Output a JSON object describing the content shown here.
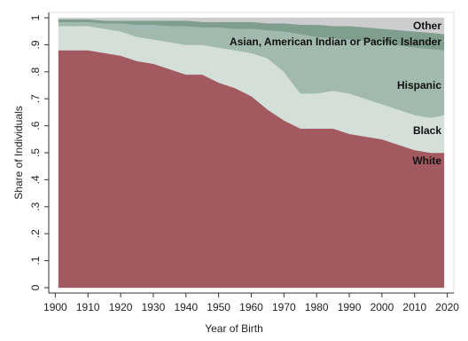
{
  "chart_data": {
    "type": "stacked-area",
    "x_label": "Year of Birth",
    "y_label": "Share of Individuals",
    "x": [
      1901,
      1905,
      1910,
      1915,
      1920,
      1925,
      1930,
      1935,
      1940,
      1945,
      1950,
      1955,
      1960,
      1965,
      1970,
      1975,
      1980,
      1985,
      1990,
      1995,
      2000,
      2005,
      2010,
      2015,
      2019
    ],
    "series": [
      {
        "name": "White",
        "color": "#a25a60",
        "values": [
          0.88,
          0.88,
          0.88,
          0.87,
          0.86,
          0.84,
          0.83,
          0.81,
          0.79,
          0.79,
          0.76,
          0.74,
          0.71,
          0.66,
          0.62,
          0.59,
          0.59,
          0.59,
          0.57,
          0.56,
          0.55,
          0.53,
          0.51,
          0.5,
          0.5
        ]
      },
      {
        "name": "Black",
        "color": "#d4dfd9",
        "values": [
          0.09,
          0.09,
          0.09,
          0.09,
          0.09,
          0.09,
          0.09,
          0.1,
          0.11,
          0.11,
          0.13,
          0.14,
          0.16,
          0.19,
          0.18,
          0.13,
          0.13,
          0.14,
          0.15,
          0.14,
          0.13,
          0.13,
          0.13,
          0.13,
          0.14
        ]
      },
      {
        "name": "Hispanic",
        "color": "#a1b9ae",
        "values": [
          0.015,
          0.015,
          0.015,
          0.02,
          0.03,
          0.045,
          0.055,
          0.06,
          0.07,
          0.065,
          0.075,
          0.08,
          0.09,
          0.105,
          0.15,
          0.22,
          0.21,
          0.195,
          0.2,
          0.215,
          0.23,
          0.24,
          0.25,
          0.255,
          0.24
        ]
      },
      {
        "name": "Asian, American Indian or Pacific Islander",
        "color": "#7f9e8e",
        "values": [
          0.01,
          0.01,
          0.01,
          0.01,
          0.01,
          0.015,
          0.015,
          0.02,
          0.02,
          0.02,
          0.02,
          0.025,
          0.025,
          0.025,
          0.03,
          0.035,
          0.045,
          0.045,
          0.05,
          0.05,
          0.05,
          0.055,
          0.06,
          0.06,
          0.06
        ]
      },
      {
        "name": "Other",
        "color": "#cdcdcd",
        "values": [
          0.005,
          0.005,
          0.005,
          0.01,
          0.01,
          0.01,
          0.01,
          0.01,
          0.01,
          0.015,
          0.015,
          0.015,
          0.015,
          0.02,
          0.02,
          0.025,
          0.025,
          0.03,
          0.03,
          0.035,
          0.04,
          0.045,
          0.05,
          0.055,
          0.06
        ]
      }
    ],
    "xlim": [
      1898,
      2022
    ],
    "ylim": [
      -0.02,
      1.02
    ],
    "xticks": [
      1900,
      1910,
      1920,
      1930,
      1940,
      1950,
      1960,
      1970,
      1980,
      1990,
      2000,
      2010,
      2020
    ],
    "yticks": [
      0,
      {
        "value": 0.1,
        "label": ".1"
      },
      {
        "value": 0.2,
        "label": ".2"
      },
      {
        "value": 0.3,
        "label": ".3"
      },
      {
        "value": 0.4,
        "label": ".4"
      },
      {
        "value": 0.5,
        "label": ".5"
      },
      {
        "value": 0.6,
        "label": ".6"
      },
      {
        "value": 0.7,
        "label": ".7"
      },
      {
        "value": 0.8,
        "label": ".8"
      },
      {
        "value": 0.9,
        "label": ".9"
      },
      1
    ]
  }
}
